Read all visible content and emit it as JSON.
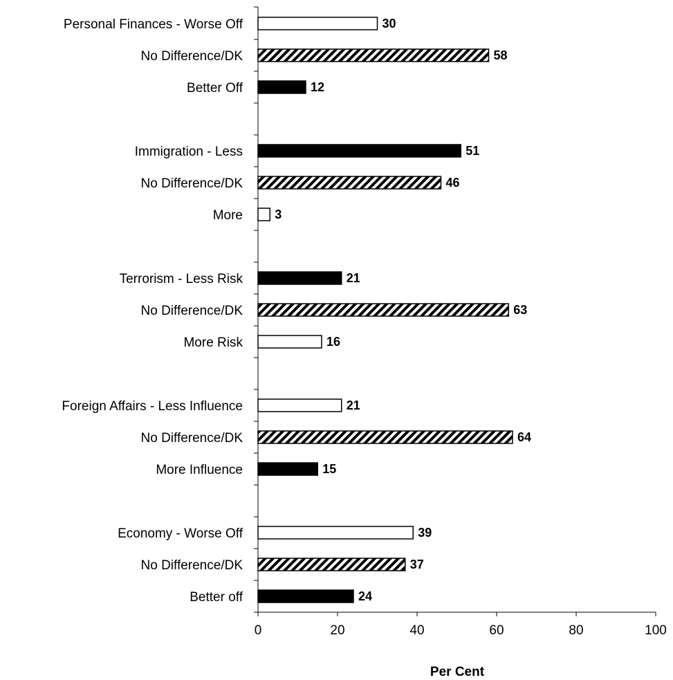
{
  "chart_data": {
    "type": "bar",
    "orientation": "horizontal",
    "xlabel": "Per Cent",
    "xlim": [
      0,
      100
    ],
    "xticks": [
      0,
      20,
      40,
      60,
      80,
      100
    ],
    "grid": false,
    "fill_styles": {
      "white": "#ffffff",
      "hatch": "#000000",
      "black": "#000000",
      "stroke": "#000000"
    },
    "bars": [
      {
        "label": "Personal Finances - Worse Off",
        "value": 30,
        "style": "white"
      },
      {
        "label": "No Difference/DK",
        "value": 58,
        "style": "hatch"
      },
      {
        "label": "Better Off",
        "value": 12,
        "style": "black"
      },
      {
        "label": "Immigration - Less",
        "value": 51,
        "style": "black"
      },
      {
        "label": "No Difference/DK",
        "value": 46,
        "style": "hatch"
      },
      {
        "label": "More",
        "value": 3,
        "style": "white"
      },
      {
        "label": "Terrorism - Less Risk",
        "value": 21,
        "style": "black"
      },
      {
        "label": "No Difference/DK",
        "value": 63,
        "style": "hatch"
      },
      {
        "label": "More Risk",
        "value": 16,
        "style": "white"
      },
      {
        "label": "Foreign Affairs - Less Influence",
        "value": 21,
        "style": "white"
      },
      {
        "label": "No Difference/DK",
        "value": 64,
        "style": "hatch"
      },
      {
        "label": "More Influence",
        "value": 15,
        "style": "black"
      },
      {
        "label": "Economy - Worse Off",
        "value": 39,
        "style": "white"
      },
      {
        "label": "No Difference/DK",
        "value": 37,
        "style": "hatch"
      },
      {
        "label": "Better off",
        "value": 24,
        "style": "black"
      }
    ]
  }
}
